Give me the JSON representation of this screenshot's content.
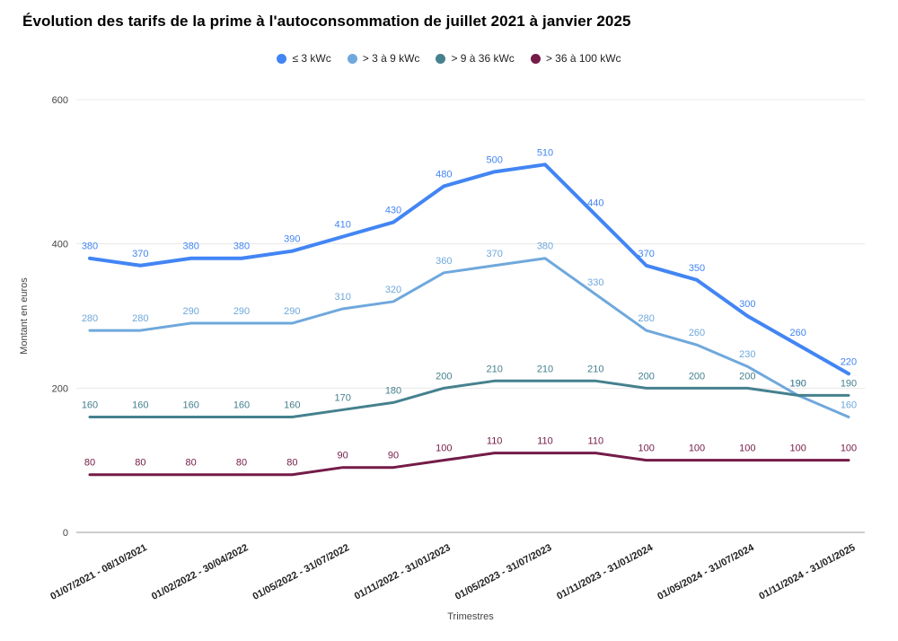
{
  "chart_data": {
    "type": "line",
    "title": "Évolution des tarifs de la prime à l'autoconsommation de juillet 2021 à janvier 2025",
    "xlabel": "Trimestres",
    "ylabel": "Montant en euros",
    "ylim": [
      0,
      600
    ],
    "yticks": [
      0,
      200,
      400,
      600
    ],
    "grid": true,
    "legend_position": "top",
    "n_points": 16,
    "x_tick_indices": [
      1,
      3,
      5,
      7,
      9,
      11,
      13,
      15
    ],
    "x_tick_labels": [
      "01/07/2021 - 08/10/2021",
      "01/02/2022 - 30/04/2022",
      "01/05/2022 - 31/07/2022",
      "01/11/2022 - 31/01/2023",
      "01/05/2023 - 31/07/2023",
      "01/11/2023 - 31/01/2024",
      "01/05/2024 - 31/07/2024",
      "01/11/2024 - 31/01/2025"
    ],
    "series": [
      {
        "name": "≤ 3 kWc",
        "color": "#4285F4",
        "values": [
          380,
          370,
          380,
          380,
          390,
          410,
          430,
          480,
          500,
          510,
          440,
          370,
          350,
          300,
          260,
          220
        ]
      },
      {
        "name": "> 3 à 9 kWc",
        "color": "#6FA8DC",
        "values": [
          280,
          280,
          290,
          290,
          290,
          310,
          320,
          360,
          370,
          380,
          330,
          280,
          260,
          230,
          190,
          160
        ]
      },
      {
        "name": "> 9 à 36 kWc",
        "color": "#45818E",
        "values": [
          160,
          160,
          160,
          160,
          160,
          170,
          180,
          200,
          210,
          210,
          210,
          200,
          200,
          200,
          190,
          190
        ]
      },
      {
        "name": "> 36 à 100 kWc",
        "color": "#741B47",
        "values": [
          80,
          80,
          80,
          80,
          80,
          90,
          90,
          100,
          110,
          110,
          110,
          100,
          100,
          100,
          100,
          100
        ]
      }
    ]
  }
}
